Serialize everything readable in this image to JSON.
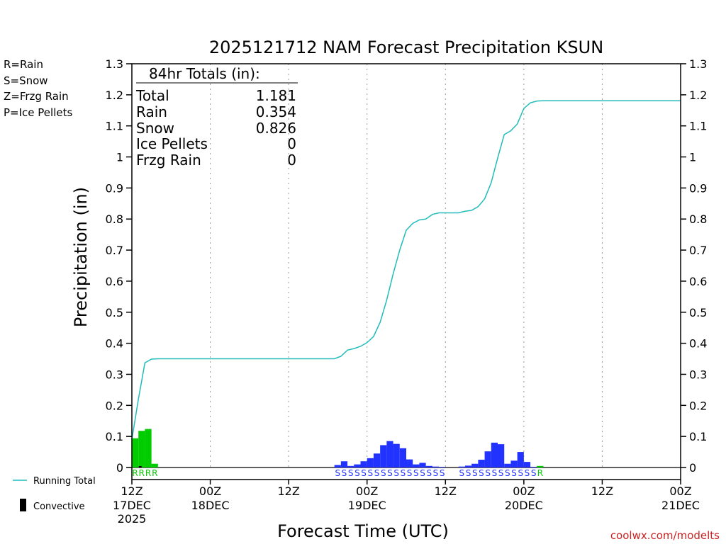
{
  "chart_data": {
    "type": "bar",
    "title": "2025121712 NAM Forecast Precipitation KSUN",
    "xlabel": "Forecast Time (UTC)",
    "ylabel": "Precipitation (in)",
    "ylim": [
      0,
      1.3
    ],
    "xlim_hours": [
      0,
      84
    ],
    "yticks": [
      "0",
      "0.1",
      "0.2",
      "0.3",
      "0.4",
      "0.5",
      "0.6",
      "0.7",
      "0.8",
      "0.9",
      "1",
      "1.1",
      "1.2",
      "1.3"
    ],
    "xticks": [
      {
        "hour": 0,
        "time": "12Z",
        "date": "17DEC",
        "year": "2025"
      },
      {
        "hour": 12,
        "time": "00Z",
        "date": "18DEC",
        "year": ""
      },
      {
        "hour": 24,
        "time": "12Z",
        "date": "",
        "year": ""
      },
      {
        "hour": 36,
        "time": "00Z",
        "date": "19DEC",
        "year": ""
      },
      {
        "hour": 48,
        "time": "12Z",
        "date": "",
        "year": ""
      },
      {
        "hour": 60,
        "time": "00Z",
        "date": "20DEC",
        "year": ""
      },
      {
        "hour": 72,
        "time": "12Z",
        "date": "",
        "year": ""
      },
      {
        "hour": 84,
        "time": "00Z",
        "date": "21DEC",
        "year": ""
      }
    ],
    "legend": [
      {
        "text": "R=Rain",
        "color": "#00dd00"
      },
      {
        "text": "S=Snow",
        "color": "#2233ee"
      },
      {
        "text": "Z=Frzg Rain",
        "color": "#ff8c1a"
      },
      {
        "text": "P=Ice Pellets",
        "color": "#ee2288"
      }
    ],
    "colors": {
      "rain": "#00cc00",
      "snow": "#2233ff",
      "total_line": "#22bbbb",
      "convective": "#000000"
    },
    "totals_box": {
      "header": "84hr Totals (in):",
      "rows": [
        {
          "label": "Total",
          "value": "1.181"
        },
        {
          "label": "Rain",
          "value": "0.354"
        },
        {
          "label": "Snow",
          "value": "0.826"
        },
        {
          "label": "Ice Pellets",
          "value": "0"
        },
        {
          "label": "Frzg Rain",
          "value": "0"
        }
      ]
    },
    "series": [
      {
        "name": "Rain",
        "type": "bar",
        "hours": [
          1,
          2,
          3,
          4
        ],
        "values": [
          0.094,
          0.118,
          0.124,
          0.012
        ],
        "labels": "RRRR"
      },
      {
        "name": "Snow",
        "type": "bar",
        "hours": [
          32,
          33,
          34,
          35,
          36,
          37,
          38,
          39,
          40,
          41,
          42,
          43,
          44,
          45,
          46,
          47,
          48,
          51,
          52,
          53,
          54,
          55,
          56,
          57,
          58,
          59,
          60,
          61,
          62
        ],
        "values": [
          0.008,
          0.02,
          0.005,
          0.01,
          0.02,
          0.03,
          0.045,
          0.072,
          0.085,
          0.076,
          0.062,
          0.026,
          0.01,
          0.015,
          0.005,
          0.003,
          0.002,
          0.003,
          0.006,
          0.012,
          0.025,
          0.052,
          0.08,
          0.075,
          0.012,
          0.022,
          0.05,
          0.018,
          0.002
        ],
        "labels": "SSSSSSSSSSSSSSSS SSSSSSSSSSS"
      },
      {
        "name": "Rain (late)",
        "type": "bar",
        "hours": [
          63
        ],
        "values": [
          0.005
        ],
        "labels": "R"
      },
      {
        "name": "Running Total",
        "type": "line",
        "points": [
          [
            0,
            0.09
          ],
          [
            1,
            0.22
          ],
          [
            2,
            0.337
          ],
          [
            3,
            0.349
          ],
          [
            4,
            0.35
          ],
          [
            10,
            0.35
          ],
          [
            20,
            0.35
          ],
          [
            31,
            0.35
          ],
          [
            32,
            0.358
          ],
          [
            33,
            0.378
          ],
          [
            34,
            0.383
          ],
          [
            35,
            0.39
          ],
          [
            36,
            0.402
          ],
          [
            37,
            0.422
          ],
          [
            38,
            0.467
          ],
          [
            39,
            0.539
          ],
          [
            40,
            0.624
          ],
          [
            41,
            0.7
          ],
          [
            42,
            0.764
          ],
          [
            43,
            0.786
          ],
          [
            44,
            0.797
          ],
          [
            45,
            0.8
          ],
          [
            46,
            0.815
          ],
          [
            47,
            0.82
          ],
          [
            48,
            0.82
          ],
          [
            49,
            0.82
          ],
          [
            50,
            0.82
          ],
          [
            51,
            0.825
          ],
          [
            52,
            0.828
          ],
          [
            53,
            0.84
          ],
          [
            54,
            0.865
          ],
          [
            55,
            0.917
          ],
          [
            56,
            0.997
          ],
          [
            57,
            1.072
          ],
          [
            58,
            1.084
          ],
          [
            59,
            1.106
          ],
          [
            60,
            1.156
          ],
          [
            61,
            1.174
          ],
          [
            62,
            1.18
          ],
          [
            63,
            1.181
          ],
          [
            84,
            1.181
          ]
        ]
      }
    ],
    "key": {
      "running_total": "Running Total",
      "convective": "Convective"
    },
    "credit": "coolwx.com/modelts"
  }
}
